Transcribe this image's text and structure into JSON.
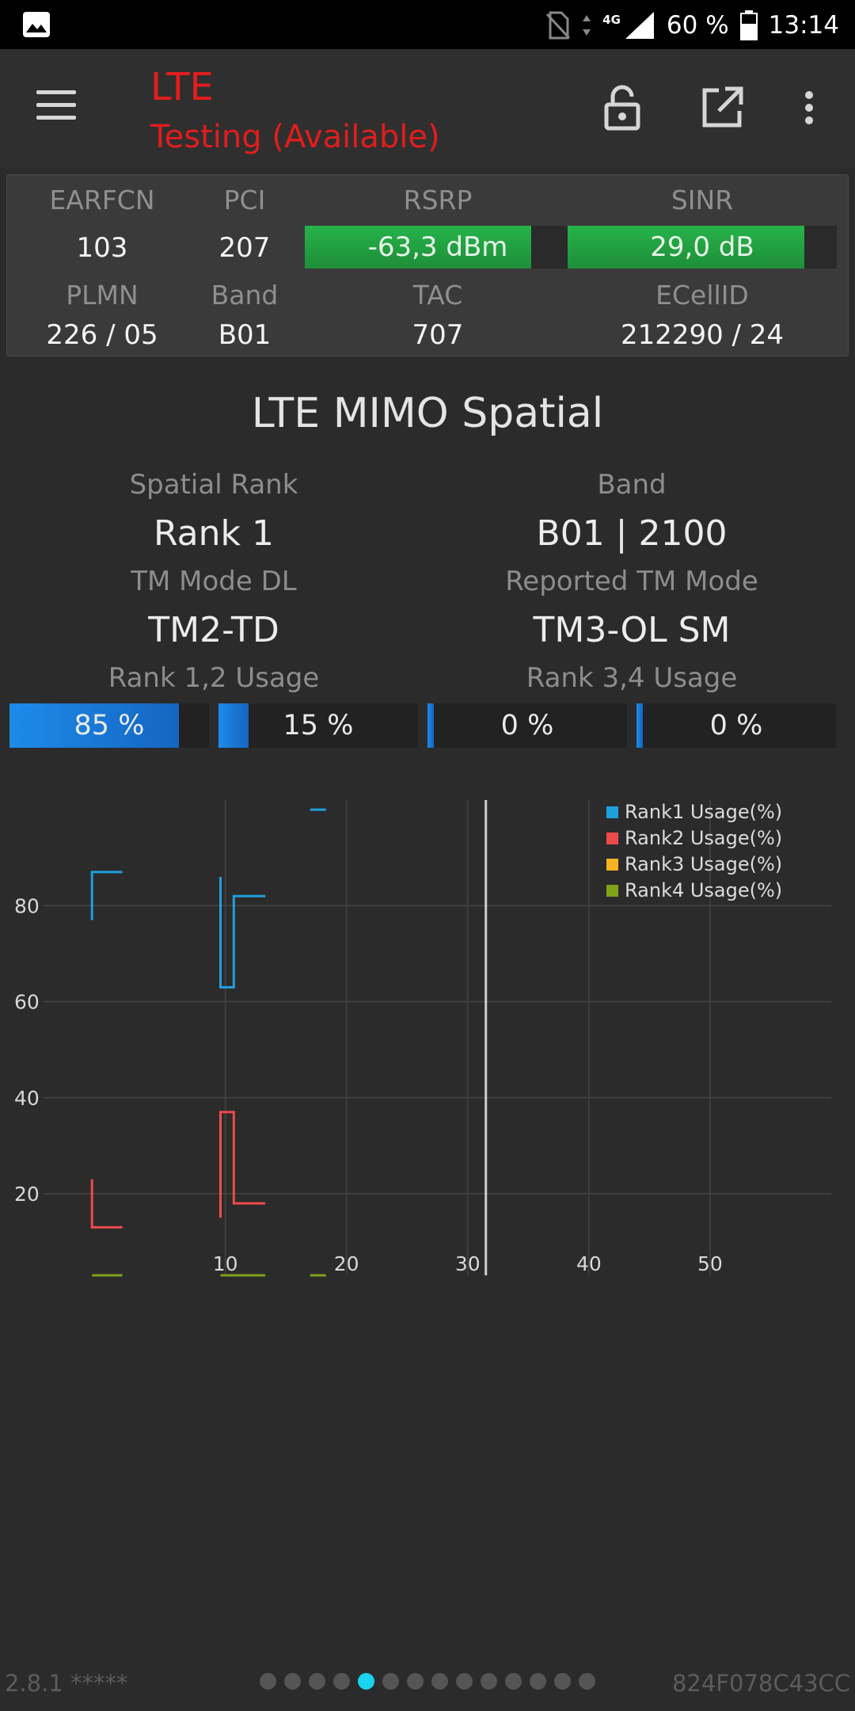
{
  "status_bar": {
    "battery": "60 %",
    "time": "13:14",
    "network": "4G",
    "icons": [
      "image-icon",
      "no-sim-icon",
      "data-arrows-icon",
      "signal-icon",
      "battery-icon"
    ]
  },
  "app_bar": {
    "title": "LTE",
    "subtitle": "Testing (Available)",
    "icons": [
      "menu-icon",
      "lock-open-icon",
      "open-external-icon",
      "more-vert-icon"
    ],
    "accent_color": "#e11d1d"
  },
  "cell_info": {
    "earfcn": {
      "label": "EARFCN",
      "value": "103"
    },
    "pci": {
      "label": "PCI",
      "value": "207"
    },
    "rsrp": {
      "label": "RSRP",
      "value": "-63,3 dBm",
      "level": 0.85
    },
    "sinr": {
      "label": "SINR",
      "value": "29,0 dB",
      "level": 0.88
    },
    "plmn": {
      "label": "PLMN",
      "value": "226 / 05"
    },
    "band": {
      "label": "Band",
      "value": "B01"
    },
    "tac": {
      "label": "TAC",
      "value": "707"
    },
    "ecellid": {
      "label": "ECellID",
      "value": "212290 / 24"
    },
    "good_color": "#26b34a"
  },
  "mimo": {
    "title": "LTE MIMO Spatial",
    "spatial_rank": {
      "label": "Spatial Rank",
      "value": "Rank 1"
    },
    "band": {
      "label": "Band",
      "value": "B01 | 2100"
    },
    "tm_mode_dl": {
      "label": "TM Mode DL",
      "value": "TM2-TD"
    },
    "reported_tm": {
      "label": "Reported TM Mode",
      "value": "TM3-OL SM"
    },
    "rank12_label": "Rank 1,2 Usage",
    "rank34_label": "Rank 3,4 Usage",
    "bars": [
      {
        "text": "85 %",
        "percent": 85
      },
      {
        "text": "15 %",
        "percent": 15
      },
      {
        "text": "0 %",
        "percent": 0
      },
      {
        "text": "0 %",
        "percent": 0
      }
    ],
    "bar_color": "#1d8bea"
  },
  "chart_data": {
    "type": "line",
    "xlim": [
      -5,
      60
    ],
    "ylim": [
      3,
      102
    ],
    "x_ticks": [
      10,
      20,
      30,
      40,
      50
    ],
    "y_ticks": [
      20,
      40,
      60,
      80
    ],
    "grid": true,
    "legend_position": "top-right",
    "cursor_x": 31.5,
    "series": [
      {
        "name": "Rank1 Usage(%)",
        "color": "#1ea0dc",
        "segments": [
          [
            [
              -1,
              77
            ],
            [
              -1,
              87
            ],
            [
              1.5,
              87
            ]
          ],
          [
            [
              9.6,
              86
            ],
            [
              9.6,
              63
            ],
            [
              10.7,
              63
            ],
            [
              10.7,
              82
            ],
            [
              13.3,
              82
            ]
          ],
          [
            [
              17,
              100
            ],
            [
              18.3,
              100
            ]
          ]
        ]
      },
      {
        "name": "Rank2 Usage(%)",
        "color": "#ef4b4b",
        "segments": [
          [
            [
              -1,
              23
            ],
            [
              -1,
              13
            ],
            [
              1.5,
              13
            ]
          ],
          [
            [
              9.6,
              15
            ],
            [
              9.6,
              37
            ],
            [
              10.7,
              37
            ],
            [
              10.7,
              18
            ],
            [
              13.3,
              18
            ]
          ]
        ]
      },
      {
        "name": "Rank3 Usage(%)",
        "color": "#f5b324",
        "segments": []
      },
      {
        "name": "Rank4 Usage(%)",
        "color": "#7fa21a",
        "segments": [
          [
            [
              -1,
              3
            ],
            [
              1.5,
              3
            ]
          ],
          [
            [
              9.6,
              3
            ],
            [
              13.3,
              3
            ]
          ],
          [
            [
              17,
              3
            ],
            [
              18.3,
              3
            ]
          ]
        ]
      }
    ]
  },
  "footer": {
    "version": "2.8.1 *****",
    "device_id": "824F078C43CC",
    "page_count": 14,
    "active_page": 5
  }
}
